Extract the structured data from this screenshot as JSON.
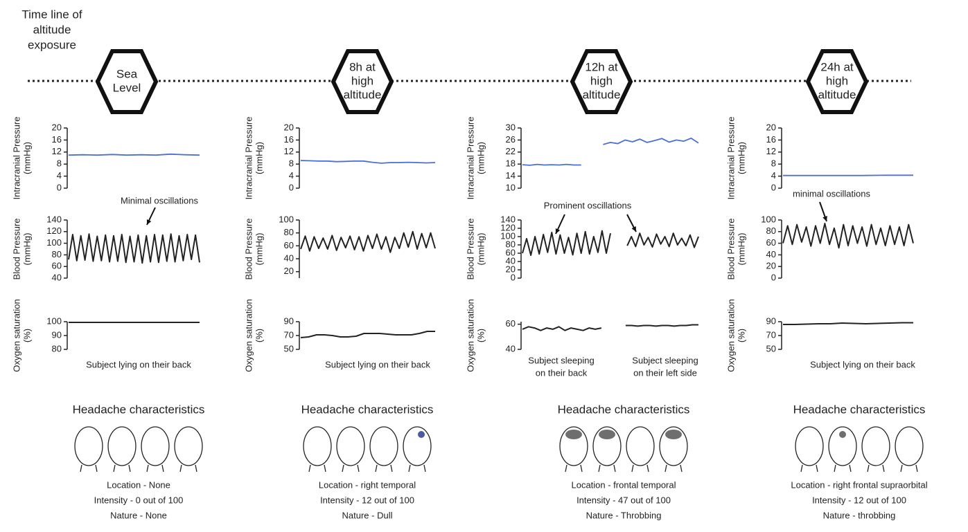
{
  "timeline_label": [
    "Time line of",
    "altitude",
    "exposure"
  ],
  "stages": [
    [
      "Sea",
      "Level"
    ],
    [
      "8h at",
      "high",
      "altitude"
    ],
    [
      "12h at",
      "high",
      "altitude"
    ],
    [
      "24h at",
      "high",
      "altitude"
    ]
  ],
  "chart_data": [
    {
      "type": "line",
      "ylabel": "Intracranial Pressure",
      "yunit": "(mmHg)",
      "ylim": [
        0,
        20
      ],
      "yticks": [
        0,
        4,
        8,
        12,
        16,
        20
      ],
      "color": "#4a6fd6",
      "values": [
        11,
        11.1,
        11,
        11.2,
        11,
        11.1,
        11,
        11.3,
        11.1,
        11
      ]
    },
    {
      "type": "line",
      "ylabel": "Blood Pressure",
      "yunit": "(mmHg)",
      "ylim": [
        40,
        140
      ],
      "yticks": [
        40,
        60,
        80,
        100,
        120,
        140
      ],
      "color": "#222222",
      "annotation": "Minimal oscillations",
      "values": [
        72,
        115,
        70,
        113,
        71,
        116,
        69,
        112,
        70,
        114,
        68,
        113,
        69,
        115,
        67,
        112,
        68,
        114,
        66,
        113,
        68,
        115,
        67,
        114,
        69,
        116,
        68,
        113,
        70,
        115,
        72,
        114,
        67
      ]
    },
    {
      "type": "line",
      "ylabel": "Oxygen saturation",
      "yunit": "(%)",
      "ylim": [
        80,
        100
      ],
      "yticks": [
        80,
        90,
        100
      ],
      "color": "#222222",
      "values": [
        99.5,
        99.5,
        99.5,
        99.5
      ]
    },
    {
      "type": "line",
      "ylabel": "Intracranial Pressure",
      "yunit": "(mmHg)",
      "ylim": [
        0,
        20
      ],
      "yticks": [
        0,
        4,
        8,
        12,
        16,
        20
      ],
      "color": "#4a6fd6",
      "values": [
        9.2,
        9.1,
        9,
        9,
        8.8,
        8.9,
        9,
        9,
        8.6,
        8.3,
        8.5,
        8.5,
        8.6,
        8.5,
        8.4,
        8.5
      ]
    },
    {
      "type": "line",
      "ylabel": "Blood Pressure",
      "yunit": "(mmHg)",
      "ylim": [
        10,
        100
      ],
      "yticks": [
        20,
        40,
        60,
        80,
        100
      ],
      "color": "#222222",
      "values": [
        55,
        75,
        52,
        74,
        56,
        72,
        55,
        76,
        53,
        73,
        57,
        75,
        54,
        74,
        52,
        76,
        56,
        78,
        55,
        74,
        50,
        73,
        56,
        80,
        58,
        82,
        55,
        79,
        57,
        80,
        56
      ]
    },
    {
      "type": "line",
      "ylabel": "Oxygen saturation",
      "yunit": "(%)",
      "ylim": [
        50,
        90
      ],
      "yticks": [
        50,
        70,
        90
      ],
      "color": "#222222",
      "values": [
        67,
        68,
        71,
        71,
        70,
        68,
        68,
        69,
        73,
        73,
        73,
        72,
        71,
        71,
        71,
        73,
        76,
        76
      ]
    },
    {
      "type": "line",
      "ylabel": "Intracranial Pressure",
      "yunit": "(mmHg)",
      "ylim": [
        10,
        30
      ],
      "yticks": [
        10,
        14,
        18,
        22,
        26,
        30
      ],
      "color": "#4a6fd6",
      "values": [
        17.8,
        17.6,
        17.9,
        17.7,
        17.8,
        17.7,
        17.9,
        17.7,
        17.7,
        null,
        null,
        24.5,
        25.2,
        24.8,
        26,
        25.4,
        26.3,
        25.2,
        25.8,
        26.5,
        25.3,
        26,
        25.6,
        26.6,
        25
      ]
    },
    {
      "type": "line",
      "ylabel": "Blood Pressure",
      "yunit": "(mmHg)",
      "ylim": [
        0,
        140
      ],
      "yticks": [
        0,
        20,
        40,
        60,
        80,
        100,
        120,
        140
      ],
      "color": "#222222",
      "annotation": "Prominent oscillations",
      "values": [
        60,
        95,
        55,
        100,
        58,
        105,
        62,
        110,
        58,
        104,
        60,
        98,
        56,
        108,
        60,
        112,
        58,
        100,
        62,
        114,
        60,
        108,
        null,
        null,
        null,
        78,
        100,
        76,
        108,
        80,
        98,
        75,
        106,
        82,
        100,
        76,
        108,
        80,
        96,
        78,
        104,
        74,
        100
      ]
    },
    {
      "type": "line",
      "ylabel": "Oxygen saturation",
      "yunit": "(%)",
      "ylim": [
        40,
        62
      ],
      "yticks": [
        40,
        60
      ],
      "color": "#222222",
      "values": [
        56,
        58,
        57,
        55,
        57,
        56,
        58,
        55,
        57,
        56,
        55,
        57,
        56,
        57,
        null,
        null,
        null,
        59,
        59,
        58.5,
        59,
        59,
        58.5,
        59,
        59,
        58.5,
        59,
        59,
        59.5,
        59.5
      ]
    },
    {
      "type": "line",
      "ylabel": "Intracranial Pressure",
      "yunit": "(mmHg)",
      "ylim": [
        0,
        20
      ],
      "yticks": [
        0,
        4,
        8,
        12,
        16,
        20
      ],
      "color": "#4a6fd6",
      "values": [
        4.2,
        4.2,
        4.2,
        4.2,
        4.3,
        4.3
      ]
    },
    {
      "type": "line",
      "ylabel": "Blood Pressure",
      "yunit": "(mmHg)",
      "ylim": [
        0,
        100
      ],
      "yticks": [
        0,
        20,
        40,
        60,
        80,
        100
      ],
      "color": "#222222",
      "annotation": "minimal oscillations",
      "values": [
        60,
        90,
        58,
        92,
        62,
        88,
        55,
        90,
        60,
        94,
        58,
        86,
        52,
        92,
        56,
        90,
        60,
        88,
        55,
        92,
        58,
        86,
        56,
        90,
        58,
        88,
        56,
        92,
        60
      ]
    },
    {
      "type": "line",
      "ylabel": "Oxygen saturation",
      "yunit": "(%)",
      "ylim": [
        50,
        90
      ],
      "yticks": [
        50,
        70,
        90
      ],
      "color": "#222222",
      "values": [
        86,
        86,
        86.5,
        87,
        87,
        88,
        87.5,
        87,
        87.5,
        88,
        88.5,
        88.5
      ]
    }
  ],
  "captions": [
    [
      [
        "Subject lying on their back"
      ]
    ],
    [
      [
        "Subject lying on their back"
      ]
    ],
    [
      [
        "Subject sleeping",
        "on their back"
      ],
      [
        "Subject sleeping",
        "on their left side"
      ]
    ],
    [
      [
        "Subject lying on their back"
      ]
    ]
  ],
  "headache": [
    {
      "title": "Headache characteristics",
      "location": "Location - None",
      "intensity": "Intensity - 0 out of 100",
      "nature": "Nature - None"
    },
    {
      "title": "Headache characteristics",
      "location": "Location - right temporal",
      "intensity": "Intensity - 12 out of 100",
      "nature": "Nature - Dull"
    },
    {
      "title": "Headache characteristics",
      "location": "Location - frontal temporal",
      "intensity": "Intensity - 47 out of 100",
      "nature": "Nature - Throbbing"
    },
    {
      "title": "Headache characteristics",
      "location": "Location - right frontal supraorbital",
      "intensity": "Intensity - 12 out of 100",
      "nature": "Nature - throbbing"
    }
  ]
}
